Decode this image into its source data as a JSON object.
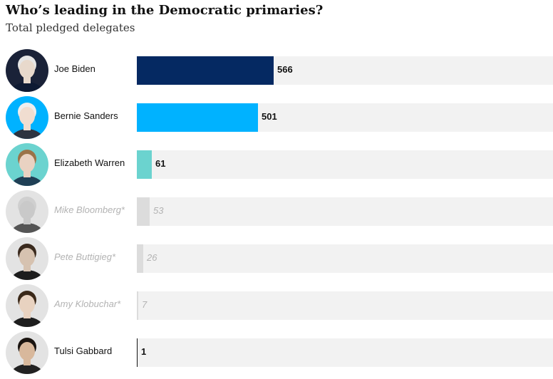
{
  "title": "Who’s leading in the Democratic primaries?",
  "subtitle": "Total pledged delegates",
  "colors": {
    "biden": "#052962",
    "sanders": "#00b2ff",
    "warren": "#6bd3cf",
    "withdrawn": "#dcdcdc",
    "track": "#f2f2f2"
  },
  "chart_data": {
    "type": "bar",
    "orientation": "horizontal",
    "title": "Who’s leading in the Democratic primaries?",
    "subtitle": "Total pledged delegates",
    "categories": [
      "Joe Biden",
      "Bernie Sanders",
      "Elizabeth Warren",
      "Mike Bloomberg*",
      "Pete Buttigieg*",
      "Amy Klobuchar*",
      "Tulsi Gabbard"
    ],
    "values": [
      566,
      501,
      61,
      53,
      26,
      7,
      1
    ],
    "withdrawn": [
      false,
      false,
      false,
      true,
      true,
      true,
      false
    ],
    "bar_colors": [
      "#052962",
      "#00b2ff",
      "#6bd3cf",
      "#dcdcdc",
      "#dcdcdc",
      "#dcdcdc",
      "#121212"
    ],
    "xlim": [
      0,
      1720
    ],
    "grid": false
  }
}
